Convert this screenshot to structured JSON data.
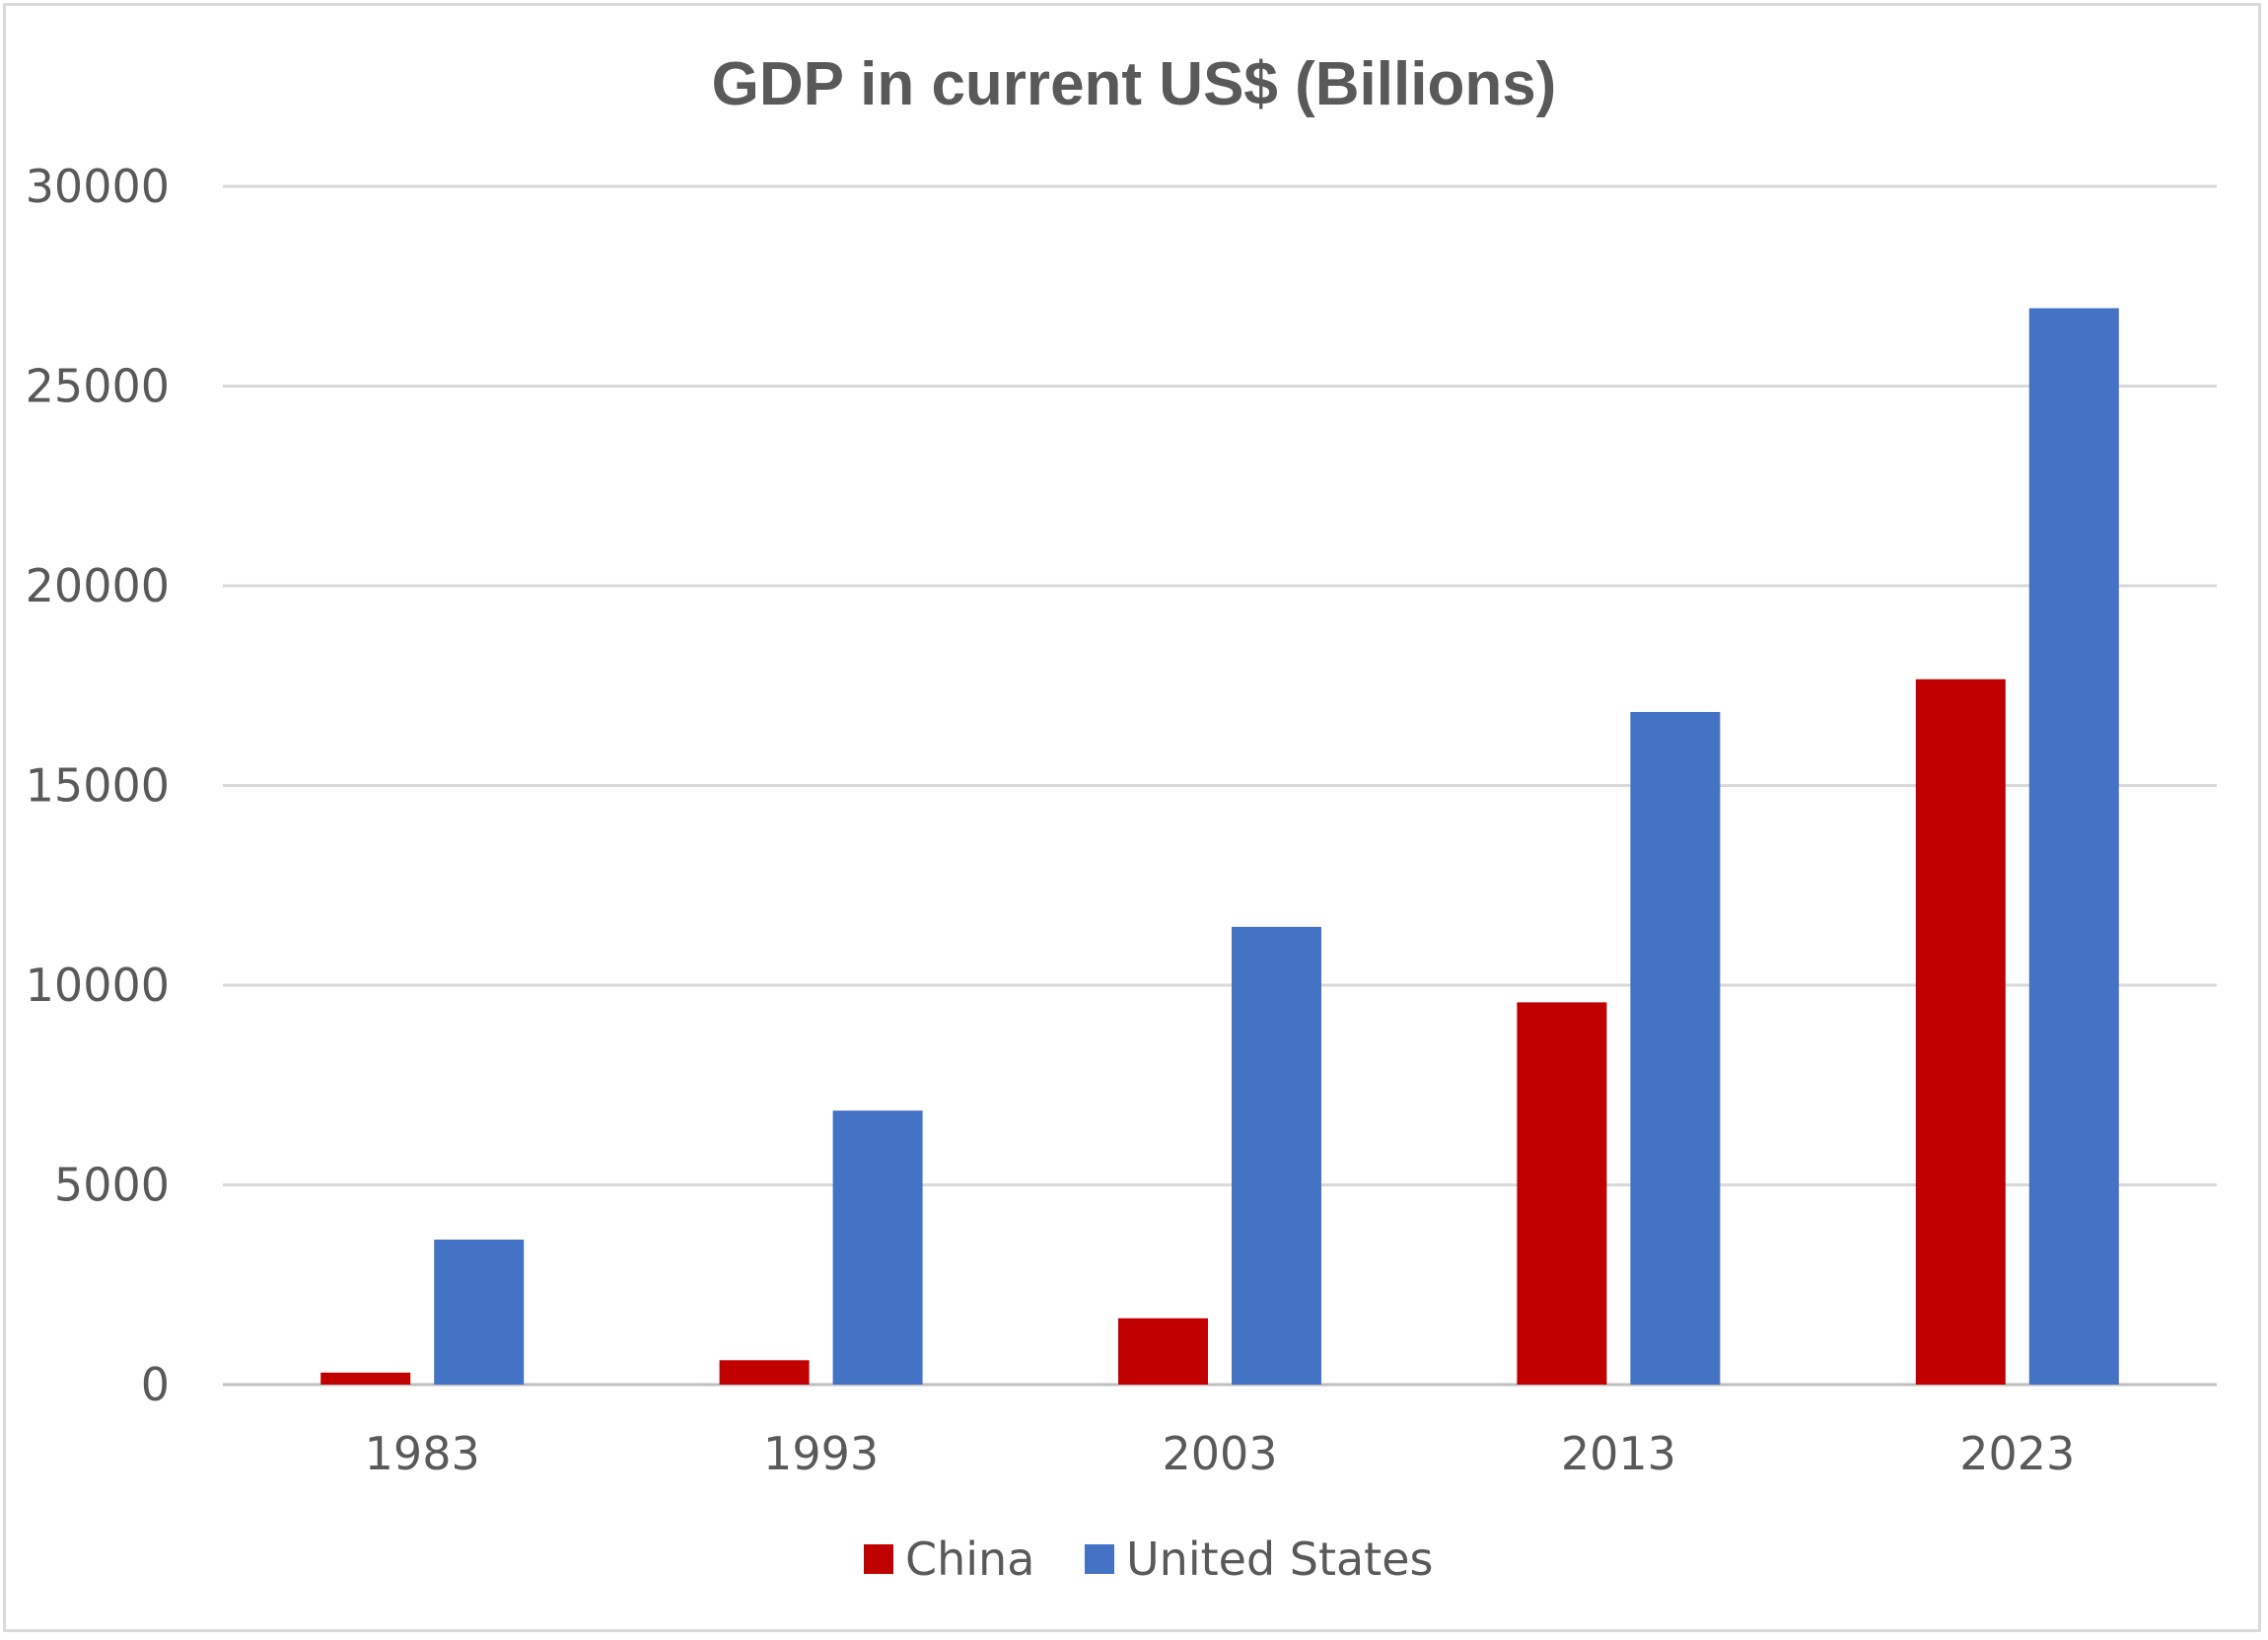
{
  "chart_data": {
    "type": "bar",
    "title": "GDP in current US$ (Billions)",
    "xlabel": "",
    "ylabel": "",
    "categories": [
      "1983",
      "1993",
      "2003",
      "2013",
      "2023"
    ],
    "series": [
      {
        "name": "China",
        "color": "#c00000",
        "values": [
          300,
          610,
          1660,
          9570,
          17660
        ]
      },
      {
        "name": "United States",
        "color": "#4472c4",
        "values": [
          3630,
          6860,
          11460,
          16840,
          26950
        ]
      }
    ],
    "ylim": [
      0,
      30000
    ],
    "yticks": [
      "0",
      "5000",
      "10000",
      "15000",
      "20000",
      "25000",
      "30000"
    ],
    "grid": true,
    "legend_position": "bottom"
  }
}
